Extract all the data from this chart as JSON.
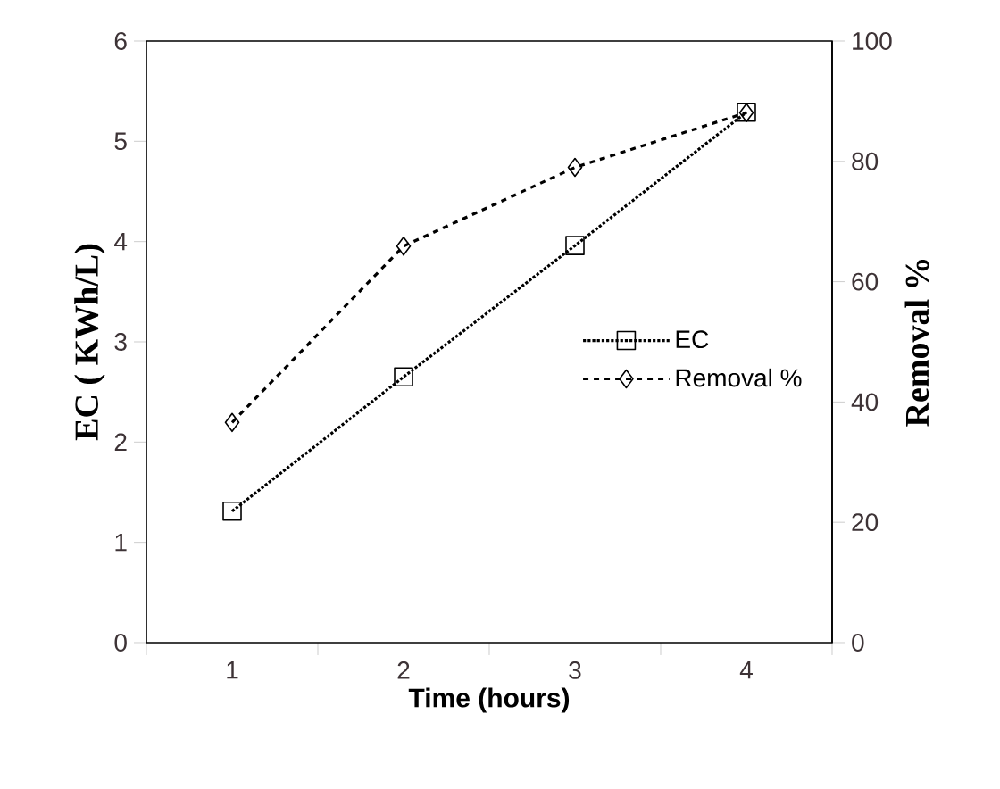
{
  "chart_data": {
    "type": "line",
    "categories": [
      "1",
      "2",
      "3",
      "4"
    ],
    "xlabel": "Time (hours)",
    "ylabel": "EC ( KWh/L)",
    "y2label": "Removal %",
    "ylim": [
      0,
      6
    ],
    "yticks": [
      0,
      1,
      2,
      3,
      4,
      5,
      6
    ],
    "y2lim": [
      0,
      100
    ],
    "y2ticks": [
      0,
      20,
      40,
      60,
      80,
      100
    ],
    "legend": "right",
    "grid": false,
    "series": [
      {
        "name": "EC",
        "color": "#000000",
        "marker": "square",
        "line_style": "dotted",
        "values": [
          1.31,
          2.65,
          3.96,
          5.29
        ]
      },
      {
        "name": "Removal %",
        "color": "#000000",
        "marker": "diamond",
        "line_style": "dashed",
        "axis": "y2",
        "values": [
          36.6,
          65.9,
          79,
          88.1
        ]
      }
    ]
  }
}
